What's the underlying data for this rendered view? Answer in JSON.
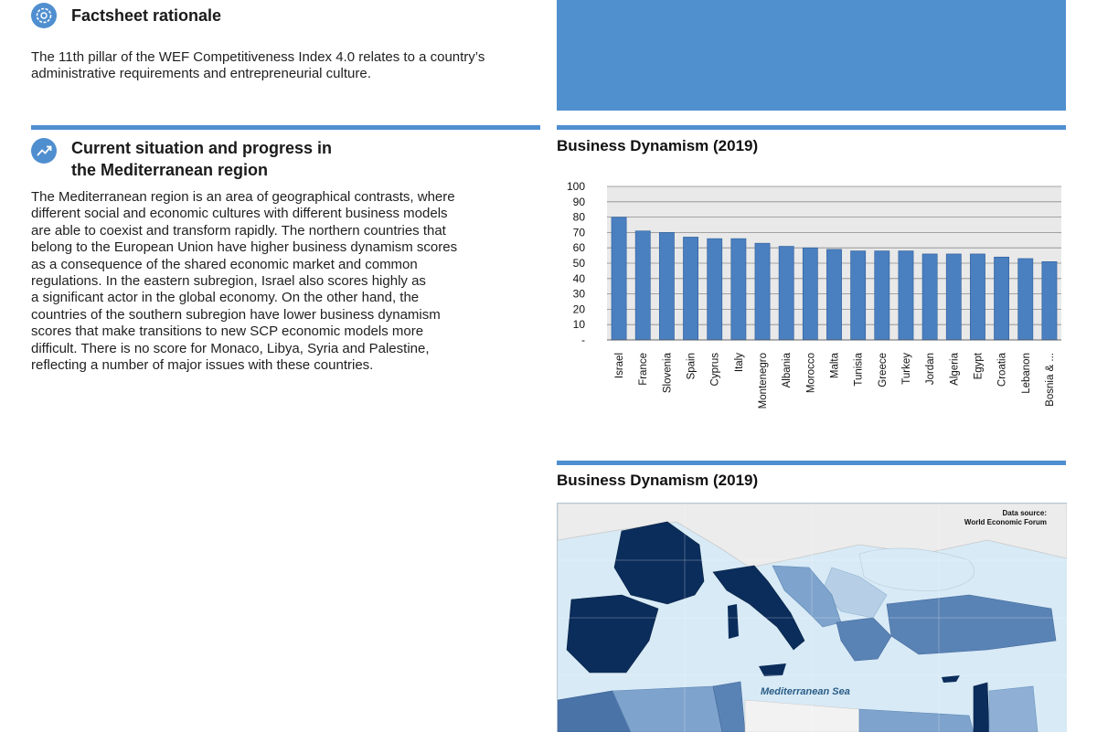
{
  "rationale": {
    "title": "Factsheet rationale",
    "icon": "gear-icon",
    "text": "The 11th pillar of the WEF Competitiveness Index 4.0 relates to a country’s administrative requirements and entrepreneurial culture."
  },
  "situation": {
    "title_line1": "Current situation and progress in",
    "title_line2": "the Mediterranean region",
    "icon": "trend-up-icon",
    "paragraph_lines": [
      "The Mediterranean region is an area of geographical contrasts, where",
      "different social and economic cultures with different business models",
      "are able to coexist and transform rapidly. The northern countries that",
      "belong to the European Union have higher business dynamism scores",
      "as a consequence of the shared economic market and common",
      "regulations. In the eastern subregion, Israel also scores highly as",
      "a significant actor in the global economy. On the other hand, the",
      "countries of the southern subregion have lower business dynamism",
      "scores that make transitions to new SCP economic models more",
      "difficult. There is no score for Monaco, Libya, Syria and Palestine,",
      "reflecting a number of major issues with these countries."
    ]
  },
  "colors": {
    "accent": "#4f8fd0",
    "bar": "#4a7fc0",
    "map_sea": "#d7eaf6",
    "map_dark": "#0b2d5c"
  },
  "chart_section": {
    "title": "Business Dynamism (2019)"
  },
  "map_section": {
    "title": "Business Dynamism (2019)",
    "source_line1": "Data source:",
    "source_line2": "World Economic Forum",
    "sea_label": "Mediterranean Sea"
  },
  "chart_data": {
    "type": "bar",
    "title": "Business Dynamism (2019)",
    "xlabel": "",
    "ylabel": "",
    "ylim": [
      0,
      100
    ],
    "y_tick_labels": [
      "-",
      "10",
      "20",
      "30",
      "40",
      "50",
      "60",
      "70",
      "80",
      "90",
      "100"
    ],
    "grid": true,
    "categories": [
      "Israel",
      "France",
      "Slovenia",
      "Spain",
      "Cyprus",
      "Italy",
      "Montenegro",
      "Albania",
      "Morocco",
      "Malta",
      "Tunisia",
      "Greece",
      "Turkey",
      "Jordan",
      "Algeria",
      "Egypt",
      "Croatia",
      "Lebanon",
      "Bosnia & ..."
    ],
    "values": [
      80,
      71,
      70,
      67,
      66,
      66,
      63,
      61,
      60,
      59,
      58,
      58,
      58,
      56,
      56,
      56,
      54,
      53,
      51
    ]
  }
}
